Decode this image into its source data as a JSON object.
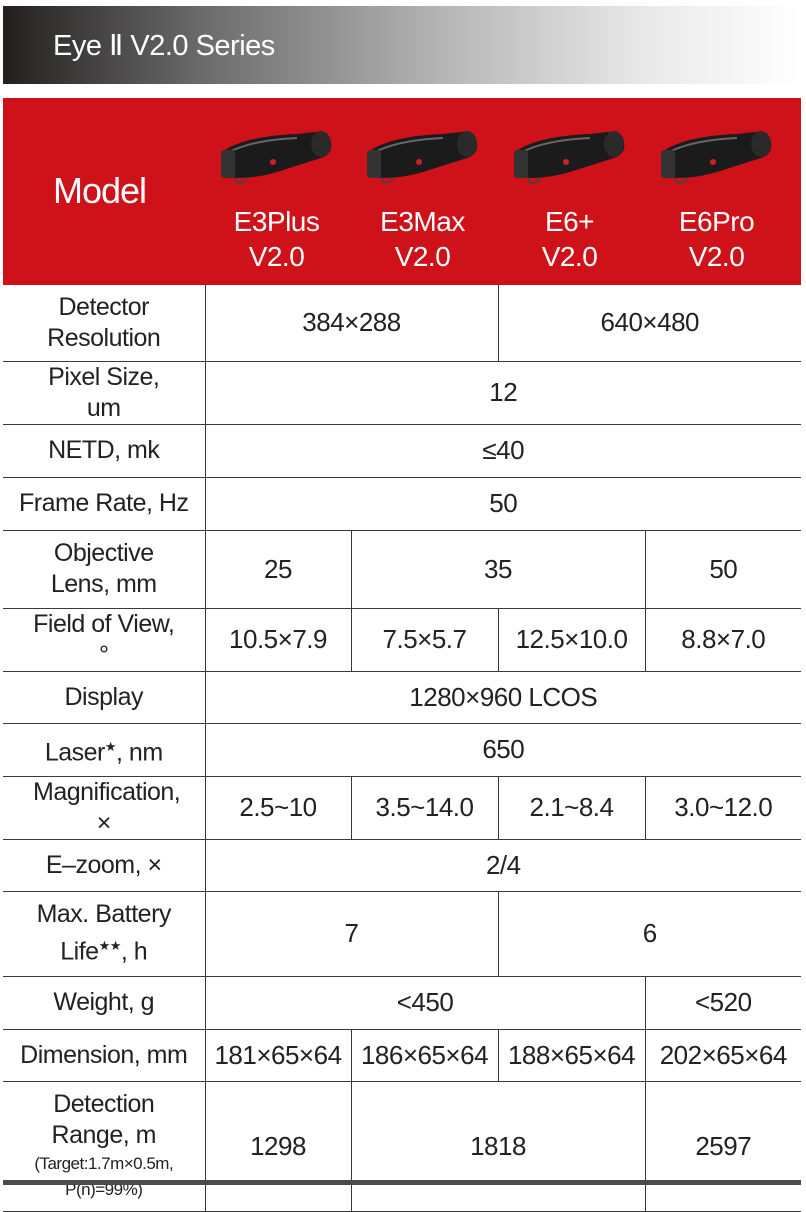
{
  "banner": {
    "title": "Eye Ⅱ V2.0 Series",
    "gradient": [
      "#231f1f",
      "#ffffff"
    ]
  },
  "header": {
    "label": "Model",
    "color": "#cf111a",
    "products": [
      {
        "name": "E3Plus",
        "version": "V2.0"
      },
      {
        "name": "E3Max",
        "version": "V2.0"
      },
      {
        "name": "E6+",
        "version": "V2.0"
      },
      {
        "name": "E6Pro",
        "version": "V2.0"
      }
    ]
  },
  "rows": [
    {
      "label": "Detector Resolution",
      "h": 76,
      "cells": [
        {
          "text": "384×288",
          "span": 2
        },
        {
          "text": "640×480",
          "span": 2
        }
      ]
    },
    {
      "label": "Pixel Size,  um",
      "h": 52,
      "cells": [
        {
          "text": "12",
          "span": 4
        }
      ]
    },
    {
      "label": "NETD, mk",
      "h": 53,
      "cells": [
        {
          "text": "≤40",
          "span": 4
        }
      ]
    },
    {
      "label": "Frame Rate, Hz",
      "h": 53,
      "cells": [
        {
          "text": "50",
          "span": 4
        }
      ]
    },
    {
      "label": "Objective Lens, mm",
      "h": 78,
      "cells": [
        {
          "text": "25",
          "span": 1
        },
        {
          "text": "35",
          "span": 2
        },
        {
          "text": "50",
          "span": 1
        }
      ]
    },
    {
      "label": "Field of View, °",
      "h": 53,
      "cells": [
        {
          "text": "10.5×7.9",
          "span": 1
        },
        {
          "text": "7.5×5.7",
          "span": 1
        },
        {
          "text": "12.5×10.0",
          "span": 1
        },
        {
          "text": "8.8×7.0",
          "span": 1
        }
      ]
    },
    {
      "label": "Display",
      "h": 52,
      "cells": [
        {
          "text": "1280×960 LCOS",
          "span": 4
        }
      ]
    },
    {
      "label": "Laser",
      "sup": "★",
      "suffix": ", nm",
      "h": 53,
      "cells": [
        {
          "text": "650",
          "span": 4
        }
      ]
    },
    {
      "label": "Magnification, ×",
      "h": 53,
      "cells": [
        {
          "text": "2.5~10",
          "span": 1
        },
        {
          "text": "3.5~14.0",
          "span": 1
        },
        {
          "text": "2.1~8.4",
          "span": 1
        },
        {
          "text": "3.0~12.0",
          "span": 1
        }
      ]
    },
    {
      "label": "E–zoom, ×",
      "h": 52,
      "cells": [
        {
          "text": "2/4",
          "span": 4
        }
      ]
    },
    {
      "label": "Max. Battery Life",
      "sup": "★★",
      "suffix": ",  h",
      "h": 85,
      "cells": [
        {
          "text": "7",
          "span": 2
        },
        {
          "text": "6",
          "span": 2
        }
      ]
    },
    {
      "label": "Weight,  g",
      "h": 53,
      "cells": [
        {
          "text": "<450",
          "span": 3
        },
        {
          "text": "<520",
          "span": 1
        }
      ]
    },
    {
      "label": "Dimension, mm",
      "h": 52,
      "cells": [
        {
          "text": "181×65×64",
          "span": 1
        },
        {
          "text": "186×65×64",
          "span": 1
        },
        {
          "text": "188×65×64",
          "span": 1
        },
        {
          "text": "202×65×64",
          "span": 1
        }
      ]
    },
    {
      "label": "Detection Range, m",
      "note": "(Target:1.7m×0.5m, P(n)=99%)",
      "h": 130,
      "cells": [
        {
          "text": "1298",
          "span": 1
        },
        {
          "text": "1818",
          "span": 2
        },
        {
          "text": "2597",
          "span": 1
        }
      ]
    }
  ]
}
